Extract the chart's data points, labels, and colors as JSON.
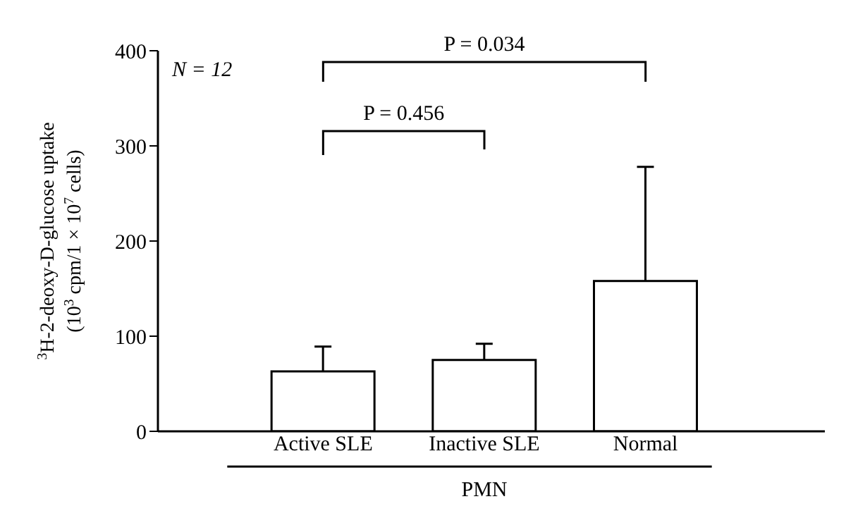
{
  "chart_data": {
    "type": "bar",
    "categories": [
      "Active SLE",
      "Inactive SLE",
      "Normal"
    ],
    "values": [
      63,
      75,
      158
    ],
    "errors": [
      26,
      17,
      120
    ],
    "color": "#ffffff",
    "xlabel": "PMN",
    "ylabel": "$^{3}$H-2-deoxy-D-glucose uptake\n(10$^{3}$ cpm/1 × 10$^{7}$ cells)",
    "ylim": [
      0,
      400
    ],
    "yticks": [
      0,
      100,
      200,
      300,
      400
    ],
    "grid": false,
    "legend": false,
    "annotations": [
      "N = 12",
      "P = 0.034",
      "P = 0.456"
    ]
  }
}
